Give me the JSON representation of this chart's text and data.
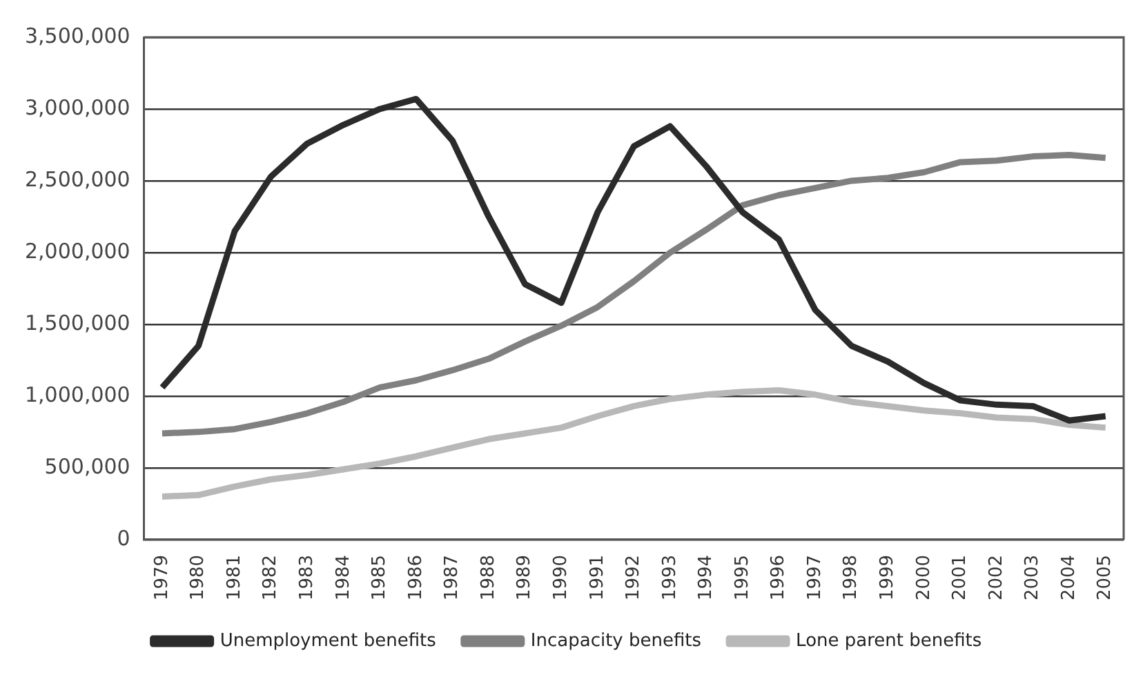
{
  "chart_data": {
    "type": "line",
    "categories": [
      "1979",
      "1980",
      "1981",
      "1982",
      "1983",
      "1984",
      "1985",
      "1986",
      "1987",
      "1988",
      "1989",
      "1990",
      "1991",
      "1992",
      "1993",
      "1994",
      "1995",
      "1996",
      "1997",
      "1998",
      "1999",
      "2000",
      "2001",
      "2002",
      "2003",
      "2004",
      "2005"
    ],
    "series": [
      {
        "name": "Unemployment benefits",
        "color": "#2b2b2b",
        "values": [
          1060000,
          1350000,
          2150000,
          2530000,
          2760000,
          2890000,
          3000000,
          3070000,
          2780000,
          2250000,
          1780000,
          1650000,
          2280000,
          2740000,
          2880000,
          2600000,
          2280000,
          2090000,
          1600000,
          1350000,
          1240000,
          1090000,
          970000,
          940000,
          930000,
          830000,
          860000
        ]
      },
      {
        "name": "Incapacity benefits",
        "color": "#808080",
        "values": [
          740000,
          750000,
          770000,
          820000,
          880000,
          960000,
          1060000,
          1110000,
          1180000,
          1260000,
          1380000,
          1490000,
          1620000,
          1800000,
          2000000,
          2160000,
          2330000,
          2400000,
          2450000,
          2500000,
          2520000,
          2560000,
          2630000,
          2640000,
          2670000,
          2680000,
          2660000
        ]
      },
      {
        "name": "Lone parent benefits",
        "color": "#b8b8b8",
        "values": [
          300000,
          310000,
          370000,
          420000,
          450000,
          490000,
          530000,
          580000,
          640000,
          700000,
          740000,
          780000,
          860000,
          930000,
          980000,
          1010000,
          1030000,
          1040000,
          1010000,
          960000,
          930000,
          900000,
          880000,
          850000,
          840000,
          800000,
          780000
        ]
      }
    ],
    "ylim": [
      0,
      3500000
    ],
    "yticks": [
      0,
      {
        "value": 500000,
        "label": "500,000"
      },
      {
        "value": 1000000,
        "label": "1,000,000"
      },
      {
        "value": 1500000,
        "label": "1,500,000"
      },
      {
        "value": 2000000,
        "label": "2,000,000"
      },
      {
        "value": 2500000,
        "label": "2,500,000"
      },
      {
        "value": 3000000,
        "label": "3,000,000"
      },
      {
        "value": 3500000,
        "label": "3,500,000"
      }
    ],
    "grid": "y",
    "legend": "bottom",
    "marker": "none",
    "line_style": "solid"
  }
}
